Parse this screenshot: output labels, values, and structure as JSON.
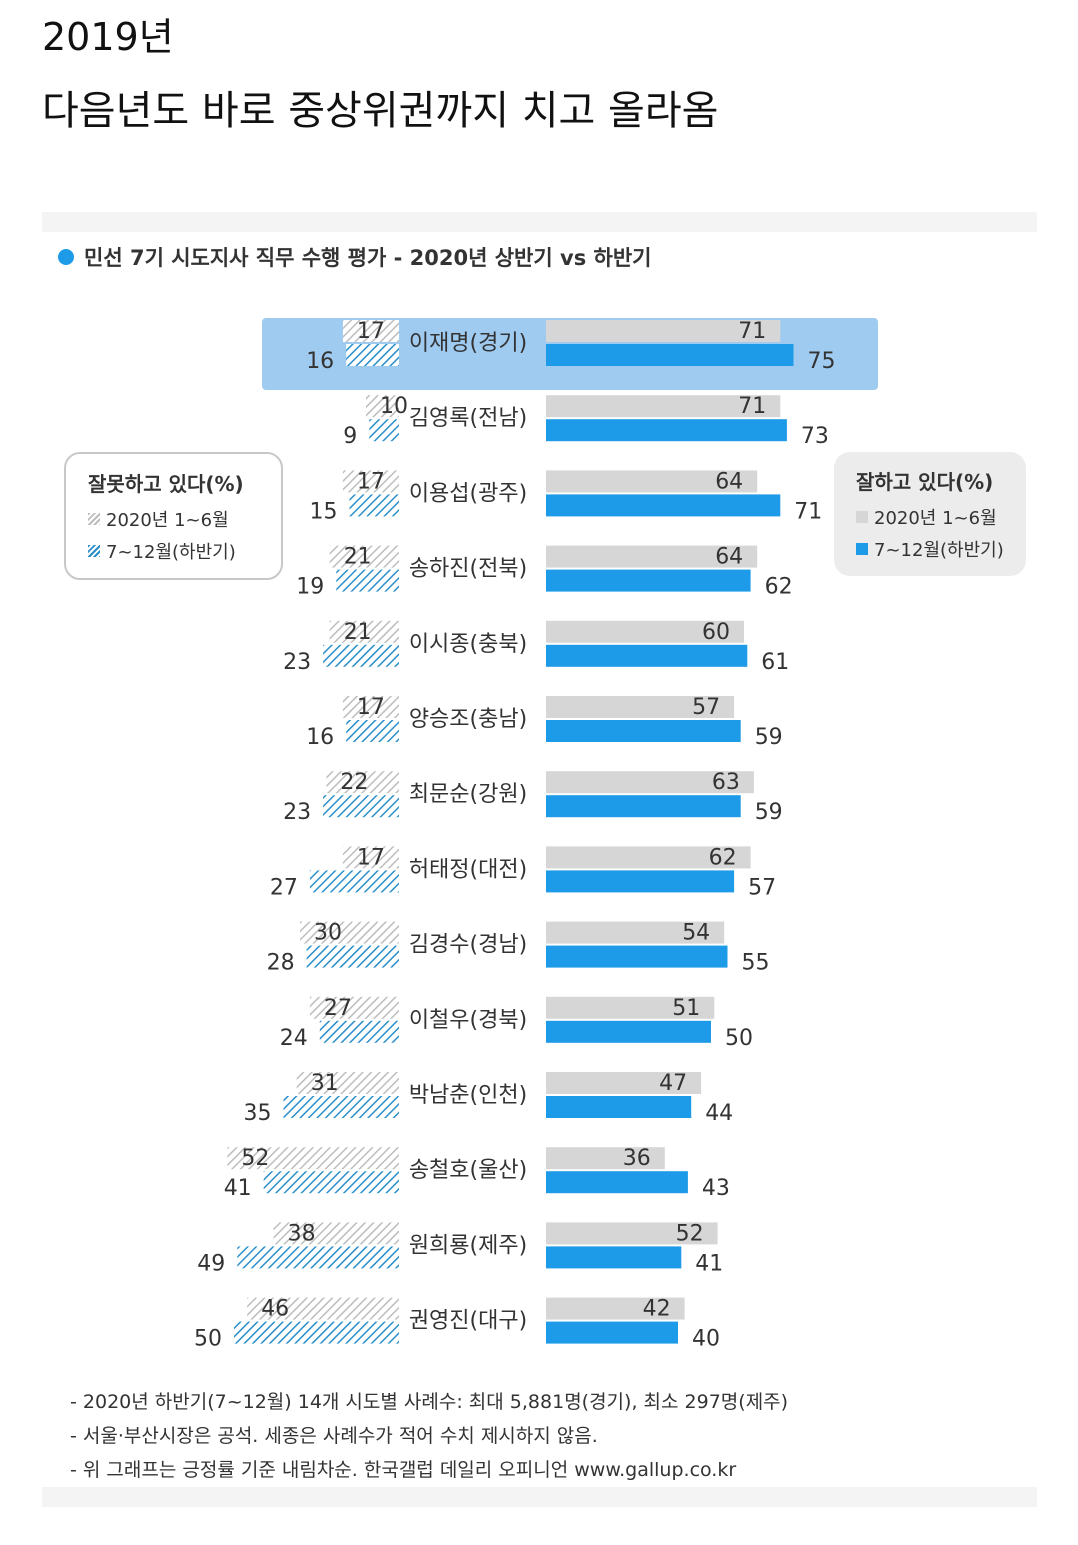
{
  "post": {
    "title_line1": "2019년",
    "title_line2": "다음년도 바로 중상위권까지 치고 올라옴"
  },
  "chart": {
    "title": "민선 7기 시도지사 직무 수행 평가 - 2020년 상반기 vs 하반기",
    "legend_left": {
      "title": "잘못하고 있다(%)",
      "item1": "2020년 1~6월",
      "item2": "7~12월(하반기)"
    },
    "legend_right": {
      "title": "잘하고 있다(%)",
      "item1": "2020년 1~6월",
      "item2": "7~12월(하반기)"
    },
    "footnotes": [
      "- 2020년 하반기(7~12월) 14개 시도별 사례수: 최대 5,881명(경기), 최소 297명(제주)",
      "- 서울·부산시장은 공석. 세종은 사례수가 적어 수치 제시하지 않음.",
      "- 위 그래프는 긍정률 기준 내림차순. 한국갤럽 데일리 오피니언 www.gallup.co.kr"
    ],
    "colors": {
      "blue": "#1d9be8",
      "gray": "#d6d6d6",
      "hatch_blue": "#2a8fc9",
      "hatch_gray": "#bdbdbd",
      "highlight": "#50a0e6"
    }
  },
  "chart_data": {
    "type": "bar",
    "categories": [
      "이재명(경기)",
      "김영록(전남)",
      "이용섭(광주)",
      "송하진(전북)",
      "이시종(충북)",
      "양승조(충남)",
      "최문순(강원)",
      "허태정(대전)",
      "김경수(경남)",
      "이철우(경북)",
      "박남춘(인천)",
      "송철호(울산)",
      "원희룡(제주)",
      "권영진(대구)"
    ],
    "highlighted_category": "이재명(경기)",
    "series": [
      {
        "name": "잘하고 있다(%) 2020년 1~6월",
        "values": [
          71,
          71,
          64,
          64,
          60,
          57,
          63,
          62,
          54,
          51,
          47,
          36,
          52,
          42
        ]
      },
      {
        "name": "잘하고 있다(%) 7~12월(하반기)",
        "values": [
          75,
          73,
          71,
          62,
          61,
          59,
          59,
          57,
          55,
          50,
          44,
          43,
          41,
          40
        ]
      },
      {
        "name": "잘못하고 있다(%) 2020년 1~6월",
        "values": [
          17,
          10,
          17,
          21,
          21,
          17,
          22,
          17,
          30,
          27,
          31,
          52,
          38,
          46
        ]
      },
      {
        "name": "잘못하고 있다(%) 7~12월(하반기)",
        "values": [
          16,
          9,
          15,
          19,
          23,
          16,
          23,
          27,
          28,
          24,
          35,
          41,
          49,
          50
        ]
      }
    ]
  }
}
